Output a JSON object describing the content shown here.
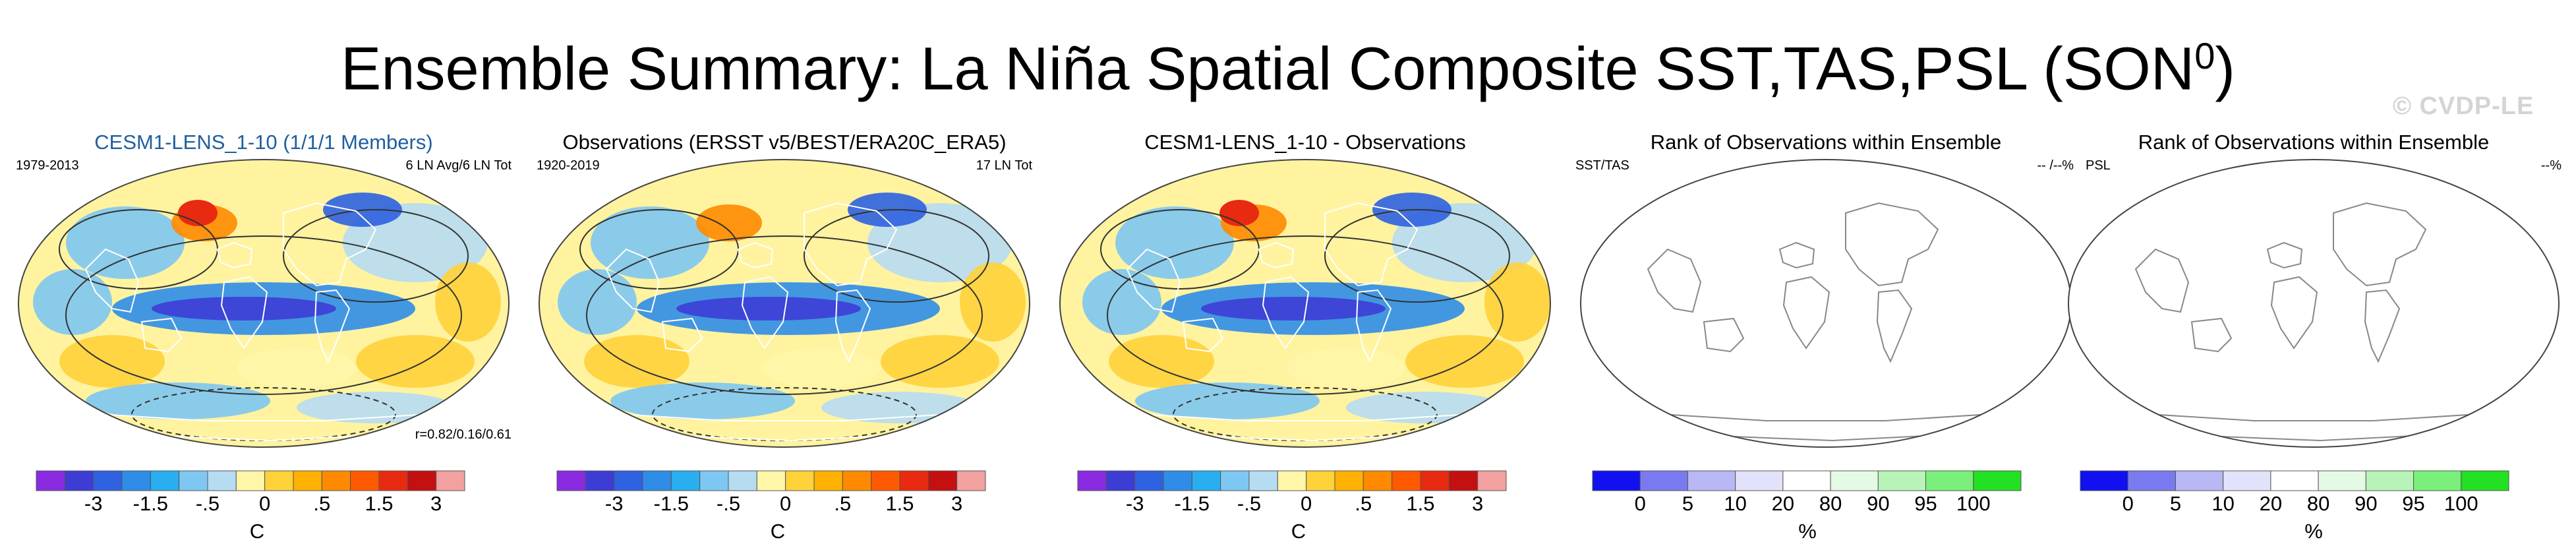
{
  "title": "Ensemble Summary: La Niña Spatial Composite SST,TAS,PSL (SON",
  "title_sup": "0",
  "title_close": ")",
  "watermark": "© CVDP-LE",
  "panels": [
    {
      "title": "CESM1-LENS_1-10 (1/1/1 Members)",
      "left_label": "1979-2013",
      "right_label": "6 LN Avg/6 LN Tot",
      "bottom_label": "r=0.82/0.16/0.61"
    },
    {
      "title": "Observations (ERSST v5/BEST/ERA20C_ERA5)",
      "left_label": "1920-2019",
      "right_label": "17 LN Tot",
      "bottom_label": ""
    },
    {
      "title": "CESM1-LENS_1-10 - Observations",
      "left_label": "",
      "right_label": "",
      "bottom_label": ""
    },
    {
      "title": "Rank of Observations within Ensemble",
      "left_label": "SST/TAS",
      "right_label": "-- /--%",
      "bottom_label": ""
    },
    {
      "title": "Rank of Observations within Ensemble",
      "left_label": "PSL",
      "right_label": "--%",
      "bottom_label": ""
    }
  ],
  "colorbar_anomaly": {
    "unit": "C",
    "labels": [
      "-3",
      "-1.5",
      "-.5",
      "0",
      ".5",
      "1.5",
      "3"
    ],
    "colors": [
      "#8a2be2",
      "#3d3dd6",
      "#2e62e0",
      "#2f8de8",
      "#29aef0",
      "#7ec7f2",
      "#b6dcf2",
      "#fff6a8",
      "#ffd23a",
      "#ffb000",
      "#ff8a00",
      "#ff5a00",
      "#e82a10",
      "#c41010",
      "#f2a0a0"
    ]
  },
  "colorbar_rank": {
    "unit": "%",
    "labels": [
      "0",
      "5",
      "10",
      "20",
      "80",
      "90",
      "95",
      "100"
    ],
    "colors": [
      "#1010f0",
      "#7a7af0",
      "#b8b8f4",
      "#e2e2fa",
      "#ffffff",
      "#e4fae4",
      "#b8f4b8",
      "#7af07a",
      "#22e022"
    ]
  },
  "chart_data": {
    "type": "heatmap",
    "description_maps": [
      {
        "panel": "CESM1-LENS_1-10 (1/1/1 Members)",
        "field": "SST/TAS anomaly (C) with PSL contours"
      },
      {
        "panel": "Observations (ERSST v5/BEST/ERA20C_ERA5)",
        "field": "SST/TAS anomaly (C) with PSL contours"
      },
      {
        "panel": "CESM1-LENS_1-10 - Observations",
        "field": "difference (C) with PSL contours"
      },
      {
        "panel": "Rank of Observations within Ensemble",
        "field": "rank %"
      },
      {
        "panel": "Rank of Observations within Ensemble",
        "field": "rank %"
      }
    ]
  }
}
